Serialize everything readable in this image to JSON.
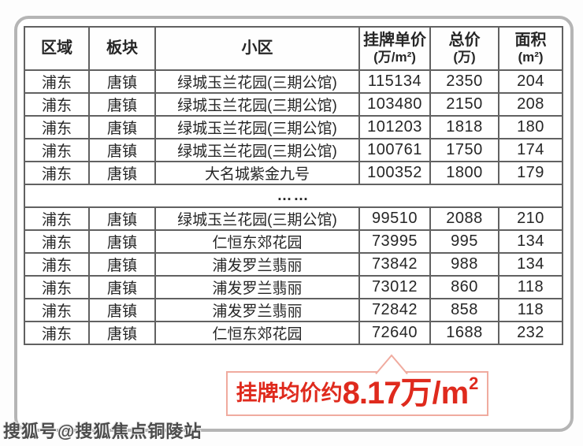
{
  "chart_data": {
    "type": "table",
    "columns": [
      {
        "label": "区域",
        "sub": ""
      },
      {
        "label": "板块",
        "sub": ""
      },
      {
        "label": "小区",
        "sub": ""
      },
      {
        "label": "挂牌单价",
        "sub": "(万/m²)"
      },
      {
        "label": "总价",
        "sub": "(万)"
      },
      {
        "label": "面积",
        "sub": "(m²)"
      }
    ],
    "rows": [
      {
        "cells": [
          "浦东",
          "唐镇",
          "绿城玉兰花园(三期公馆)",
          "115134",
          "2350",
          "204"
        ]
      },
      {
        "cells": [
          "浦东",
          "唐镇",
          "绿城玉兰花园(三期公馆)",
          "103480",
          "2150",
          "208"
        ]
      },
      {
        "cells": [
          "浦东",
          "唐镇",
          "绿城玉兰花园(三期公馆)",
          "101203",
          "1818",
          "180"
        ]
      },
      {
        "cells": [
          "浦东",
          "唐镇",
          "绿城玉兰花园(三期公馆)",
          "100761",
          "1750",
          "174"
        ]
      },
      {
        "cells": [
          "浦东",
          "唐镇",
          "大名城紫金九号",
          "100352",
          "1800",
          "179"
        ]
      },
      {
        "ellipsis": "……"
      },
      {
        "cells": [
          "浦东",
          "唐镇",
          "绿城玉兰花园(三期公馆)",
          "99510",
          "2088",
          "210"
        ]
      },
      {
        "cells": [
          "浦东",
          "唐镇",
          "仁恒东郊花园",
          "73995",
          "995",
          "134"
        ]
      },
      {
        "cells": [
          "浦东",
          "唐镇",
          "浦发罗兰翡丽",
          "73842",
          "988",
          "134"
        ]
      },
      {
        "cells": [
          "浦东",
          "唐镇",
          "浦发罗兰翡丽",
          "73012",
          "860",
          "118"
        ]
      },
      {
        "cells": [
          "浦东",
          "唐镇",
          "浦发罗兰翡丽",
          "72842",
          "858",
          "118"
        ]
      },
      {
        "cells": [
          "浦东",
          "唐镇",
          "仁恒东郊花园",
          "72640",
          "1688",
          "232"
        ]
      }
    ],
    "annotation": "挂牌均价约8.17万/m²",
    "annotation_points_to": "72640"
  },
  "callout": {
    "prefix": "挂牌均价约",
    "value": "8.17",
    "unit": "万/m",
    "unit_sup": "2"
  },
  "watermark": {
    "text": "搜狐号@搜狐焦点铜陵站"
  },
  "colors": {
    "accent_red": "#df2a1d",
    "callout_border": "#f0ab9f",
    "table_border": "#616161",
    "frame_border": "#b5b5b5",
    "text_color": "#262626"
  }
}
